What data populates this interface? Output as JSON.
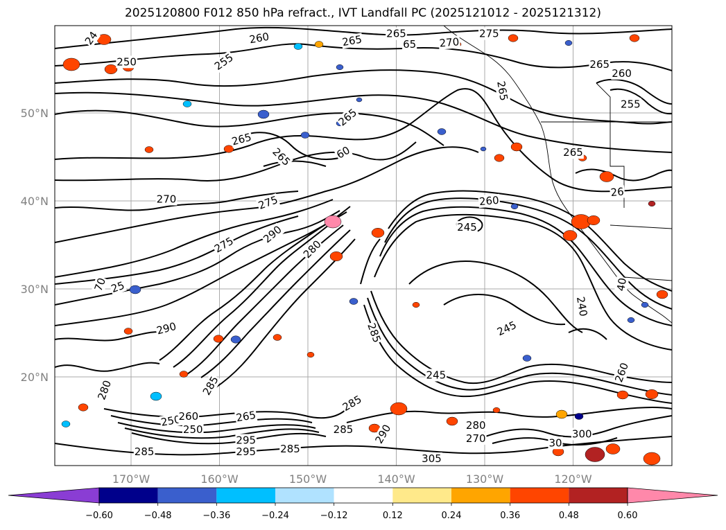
{
  "title": "2025120800 F012 850 hPa refract., IVT Landfall PC (2025121012 - 2025121312)",
  "map": {
    "lat_ticks": [
      "50°N",
      "40°N",
      "30°N",
      "20°N"
    ],
    "lon_ticks": [
      "170°W",
      "160°W",
      "150°W",
      "140°W",
      "130°W",
      "120°W"
    ]
  },
  "contour_labels": [
    {
      "text": "24",
      "lon": -174.5,
      "lat": 58.5,
      "rot": -55
    },
    {
      "text": "250",
      "lon": -170.5,
      "lat": 55.8,
      "rot": 0
    },
    {
      "text": "260",
      "lon": -155.5,
      "lat": 58.5,
      "rot": -10
    },
    {
      "text": "255",
      "lon": -159.5,
      "lat": 55.8,
      "rot": -35
    },
    {
      "text": "265",
      "lon": -145.0,
      "lat": 58.2,
      "rot": -10
    },
    {
      "text": "265",
      "lon": -140.0,
      "lat": 59.0,
      "rot": 0
    },
    {
      "text": "65",
      "lon": -138.5,
      "lat": 57.8,
      "rot": 0
    },
    {
      "text": "270",
      "lon": -134.0,
      "lat": 58.0,
      "rot": -5
    },
    {
      "text": "275",
      "lon": -129.5,
      "lat": 59.0,
      "rot": 0
    },
    {
      "text": "265",
      "lon": -117.0,
      "lat": 55.5,
      "rot": 0
    },
    {
      "text": "260",
      "lon": -114.5,
      "lat": 54.5,
      "rot": 0
    },
    {
      "text": "255",
      "lon": -113.5,
      "lat": 51.0,
      "rot": 0
    },
    {
      "text": "265",
      "lon": -128.0,
      "lat": 52.5,
      "rot": 80
    },
    {
      "text": "265",
      "lon": -145.5,
      "lat": 49.5,
      "rot": -40
    },
    {
      "text": "265",
      "lon": -157.5,
      "lat": 47.0,
      "rot": -15
    },
    {
      "text": "265",
      "lon": -153.0,
      "lat": 45.0,
      "rot": 45
    },
    {
      "text": "60",
      "lon": -146.0,
      "lat": 45.5,
      "rot": -30
    },
    {
      "text": "265",
      "lon": -120.0,
      "lat": 45.5,
      "rot": 0
    },
    {
      "text": "26",
      "lon": -115.0,
      "lat": 41.0,
      "rot": -5
    },
    {
      "text": "270",
      "lon": -166.0,
      "lat": 40.2,
      "rot": 0
    },
    {
      "text": "275",
      "lon": -154.5,
      "lat": 39.8,
      "rot": -20
    },
    {
      "text": "260",
      "lon": -129.5,
      "lat": 40.0,
      "rot": -5
    },
    {
      "text": "245",
      "lon": -132.0,
      "lat": 37.0,
      "rot": 0
    },
    {
      "text": "290",
      "lon": -154.0,
      "lat": 36.2,
      "rot": -40
    },
    {
      "text": "275",
      "lon": -159.5,
      "lat": 35.0,
      "rot": -30
    },
    {
      "text": "280",
      "lon": -149.5,
      "lat": 34.5,
      "rot": -45
    },
    {
      "text": "70",
      "lon": -173.5,
      "lat": 30.5,
      "rot": -70
    },
    {
      "text": "25",
      "lon": -171.5,
      "lat": 30.2,
      "rot": -20
    },
    {
      "text": "240",
      "lon": -119.0,
      "lat": 28.0,
      "rot": 80
    },
    {
      "text": "40",
      "lon": -114.5,
      "lat": 30.5,
      "rot": -80
    },
    {
      "text": "245",
      "lon": -127.5,
      "lat": 25.5,
      "rot": -25
    },
    {
      "text": "290",
      "lon": -166.0,
      "lat": 25.5,
      "rot": -15
    },
    {
      "text": "285",
      "lon": -142.5,
      "lat": 25.0,
      "rot": 70
    },
    {
      "text": "245",
      "lon": -135.5,
      "lat": 20.2,
      "rot": 0
    },
    {
      "text": "260",
      "lon": -114.5,
      "lat": 20.5,
      "rot": -70
    },
    {
      "text": "280",
      "lon": -173.0,
      "lat": 18.5,
      "rot": -70
    },
    {
      "text": "285",
      "lon": -161.0,
      "lat": 19.0,
      "rot": -60
    },
    {
      "text": "285",
      "lon": -145.0,
      "lat": 17.0,
      "rot": -30
    },
    {
      "text": "250",
      "lon": -165.5,
      "lat": 15.0,
      "rot": -10
    },
    {
      "text": "260",
      "lon": -163.5,
      "lat": 15.5,
      "rot": 0
    },
    {
      "text": "250",
      "lon": -163.0,
      "lat": 14.0,
      "rot": 0
    },
    {
      "text": "265",
      "lon": -157.0,
      "lat": 15.5,
      "rot": -10
    },
    {
      "text": "285",
      "lon": -146.0,
      "lat": 14.0,
      "rot": 0
    },
    {
      "text": "290",
      "lon": -141.5,
      "lat": 13.5,
      "rot": -60
    },
    {
      "text": "280",
      "lon": -131.0,
      "lat": 14.5,
      "rot": 0
    },
    {
      "text": "270",
      "lon": -131.0,
      "lat": 13.0,
      "rot": 0
    },
    {
      "text": "300",
      "lon": -119.0,
      "lat": 13.5,
      "rot": 0
    },
    {
      "text": "30",
      "lon": -122.0,
      "lat": 12.5,
      "rot": 0
    },
    {
      "text": "295",
      "lon": -157.0,
      "lat": 12.8,
      "rot": 0
    },
    {
      "text": "295",
      "lon": -157.0,
      "lat": 11.5,
      "rot": 0
    },
    {
      "text": "285",
      "lon": -152.0,
      "lat": 11.8,
      "rot": 0
    },
    {
      "text": "285",
      "lon": -168.5,
      "lat": 11.5,
      "rot": 0
    },
    {
      "text": "305",
      "lon": -136.0,
      "lat": 10.7,
      "rot": 0
    }
  ],
  "colorbar": {
    "labels": [
      "−0.60",
      "−0.48",
      "−0.36",
      "−0.24",
      "−0.12",
      "0.12",
      "0.24",
      "0.36",
      "0.48",
      "0.60"
    ],
    "boundaries": [
      -0.6,
      -0.48,
      -0.36,
      -0.24,
      -0.12,
      0.12,
      0.24,
      0.36,
      0.48,
      0.6
    ],
    "colors": [
      "#8a3dd4",
      "#00008b",
      "#3a5fcd",
      "#00bfff",
      "#b0e2ff",
      "#ffffff",
      "#ffe98a",
      "#ffa500",
      "#ff4500",
      "#b22222",
      "#ff88aa"
    ]
  }
}
